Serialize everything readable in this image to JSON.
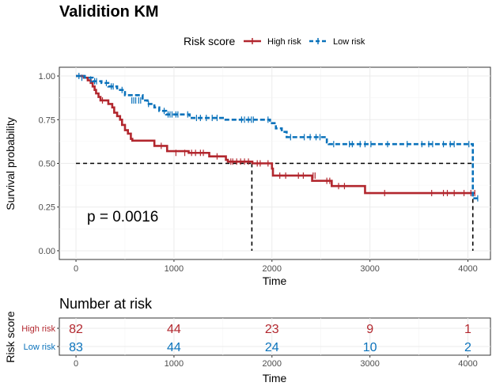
{
  "chart_data": [
    {
      "type": "line",
      "title": "Validition KM",
      "xlabel": "Time",
      "ylabel": "Survival probability",
      "xlim": [
        -170,
        4230
      ],
      "ylim": [
        -0.05,
        1.05
      ],
      "x_ticks": [
        0,
        1000,
        2000,
        3000,
        4000
      ],
      "x_tick_labels": [
        "0",
        "1000",
        "2000",
        "3000",
        "4000"
      ],
      "y_ticks": [
        0,
        0.25,
        0.5,
        0.75,
        1
      ],
      "y_tick_labels": [
        "0.00",
        "0.25",
        "0.50",
        "0.75",
        "1.00"
      ],
      "grid": true,
      "legend": {
        "title": "Risk score",
        "position": "top"
      },
      "annotation": "p = 0.0016",
      "reference_line": {
        "y": 0.5,
        "median_x": [
          1795,
          4050
        ]
      },
      "series": [
        {
          "name": "High risk",
          "color": "#B2272E",
          "dash": "solid",
          "steps": [
            [
              0,
              1.0
            ],
            [
              80,
              0.99
            ],
            [
              120,
              0.975
            ],
            [
              150,
              0.96
            ],
            [
              170,
              0.94
            ],
            [
              190,
              0.92
            ],
            [
              205,
              0.9
            ],
            [
              230,
              0.88
            ],
            [
              250,
              0.86
            ],
            [
              330,
              0.84
            ],
            [
              370,
              0.82
            ],
            [
              390,
              0.79
            ],
            [
              420,
              0.77
            ],
            [
              450,
              0.75
            ],
            [
              470,
              0.72
            ],
            [
              500,
              0.69
            ],
            [
              530,
              0.67
            ],
            [
              560,
              0.64
            ],
            [
              575,
              0.63
            ],
            [
              800,
              0.6
            ],
            [
              930,
              0.57
            ],
            [
              1150,
              0.56
            ],
            [
              1360,
              0.54
            ],
            [
              1530,
              0.52
            ],
            [
              1550,
              0.51
            ],
            [
              1800,
              0.5
            ],
            [
              2000,
              0.47
            ],
            [
              2010,
              0.43
            ],
            [
              2410,
              0.4
            ],
            [
              2610,
              0.37
            ],
            [
              2950,
              0.33
            ],
            [
              4070,
              0.33
            ]
          ],
          "censors": [
            [
              270,
              0.86
            ],
            [
              870,
              0.6
            ],
            [
              1020,
              0.56
            ],
            [
              1110,
              0.56
            ],
            [
              1180,
              0.56
            ],
            [
              1220,
              0.56
            ],
            [
              1270,
              0.56
            ],
            [
              1300,
              0.56
            ],
            [
              1440,
              0.54
            ],
            [
              1580,
              0.51
            ],
            [
              1600,
              0.51
            ],
            [
              1640,
              0.51
            ],
            [
              1680,
              0.51
            ],
            [
              1720,
              0.51
            ],
            [
              1760,
              0.51
            ],
            [
              1850,
              0.5
            ],
            [
              1880,
              0.5
            ],
            [
              1960,
              0.5
            ],
            [
              2080,
              0.43
            ],
            [
              2140,
              0.43
            ],
            [
              2270,
              0.43
            ],
            [
              2320,
              0.43
            ],
            [
              2420,
              0.43
            ],
            [
              2440,
              0.43
            ],
            [
              2560,
              0.4
            ],
            [
              2590,
              0.4
            ],
            [
              2680,
              0.37
            ],
            [
              2740,
              0.37
            ],
            [
              3150,
              0.33
            ],
            [
              3630,
              0.33
            ],
            [
              3750,
              0.33
            ],
            [
              3790,
              0.33
            ],
            [
              3860,
              0.33
            ],
            [
              3960,
              0.33
            ],
            [
              4030,
              0.33
            ],
            [
              4070,
              0.33
            ]
          ]
        },
        {
          "name": "Low risk",
          "color": "#0A72BB",
          "dash": "dashed",
          "steps": [
            [
              0,
              1.0
            ],
            [
              90,
              0.99
            ],
            [
              170,
              0.97
            ],
            [
              260,
              0.96
            ],
            [
              330,
              0.94
            ],
            [
              420,
              0.92
            ],
            [
              500,
              0.89
            ],
            [
              680,
              0.86
            ],
            [
              730,
              0.84
            ],
            [
              800,
              0.82
            ],
            [
              850,
              0.8
            ],
            [
              920,
              0.78
            ],
            [
              1160,
              0.76
            ],
            [
              1510,
              0.75
            ],
            [
              1980,
              0.73
            ],
            [
              2040,
              0.7
            ],
            [
              2100,
              0.68
            ],
            [
              2150,
              0.65
            ],
            [
              2560,
              0.62
            ],
            [
              2580,
              0.61
            ],
            [
              4030,
              0.61
            ],
            [
              4050,
              0.3
            ],
            [
              4100,
              0.3
            ]
          ],
          "censors": [
            [
              30,
              1.0
            ],
            [
              60,
              0.99
            ],
            [
              150,
              0.98
            ],
            [
              190,
              0.97
            ],
            [
              210,
              0.97
            ],
            [
              310,
              0.96
            ],
            [
              360,
              0.94
            ],
            [
              380,
              0.94
            ],
            [
              470,
              0.92
            ],
            [
              570,
              0.86
            ],
            [
              590,
              0.86
            ],
            [
              610,
              0.86
            ],
            [
              640,
              0.86
            ],
            [
              660,
              0.86
            ],
            [
              740,
              0.84
            ],
            [
              900,
              0.8
            ],
            [
              940,
              0.78
            ],
            [
              960,
              0.78
            ],
            [
              980,
              0.78
            ],
            [
              1020,
              0.78
            ],
            [
              1040,
              0.78
            ],
            [
              1140,
              0.78
            ],
            [
              1230,
              0.76
            ],
            [
              1270,
              0.76
            ],
            [
              1330,
              0.76
            ],
            [
              1390,
              0.76
            ],
            [
              1440,
              0.76
            ],
            [
              1690,
              0.75
            ],
            [
              1720,
              0.75
            ],
            [
              1760,
              0.75
            ],
            [
              1790,
              0.75
            ],
            [
              1810,
              0.75
            ],
            [
              1960,
              0.75
            ],
            [
              2190,
              0.65
            ],
            [
              2330,
              0.65
            ],
            [
              2390,
              0.65
            ],
            [
              2450,
              0.65
            ],
            [
              2490,
              0.65
            ],
            [
              2630,
              0.61
            ],
            [
              2790,
              0.61
            ],
            [
              2820,
              0.61
            ],
            [
              2900,
              0.61
            ],
            [
              2950,
              0.61
            ],
            [
              3010,
              0.61
            ],
            [
              3180,
              0.61
            ],
            [
              3380,
              0.61
            ],
            [
              3530,
              0.61
            ],
            [
              3600,
              0.61
            ],
            [
              3640,
              0.61
            ],
            [
              3750,
              0.61
            ],
            [
              3820,
              0.61
            ],
            [
              3860,
              0.61
            ],
            [
              4010,
              0.61
            ],
            [
              4100,
              0.3
            ]
          ]
        }
      ]
    },
    {
      "type": "table",
      "title": "Number at risk",
      "xlabel": "Time",
      "ylabel": "Risk score",
      "x_ticks": [
        0,
        1000,
        2000,
        3000,
        4000
      ],
      "x_tick_labels": [
        "0",
        "1000",
        "2000",
        "3000",
        "4000"
      ],
      "rows": [
        {
          "label": "High risk",
          "color": "#B2272E",
          "values": [
            "82",
            "44",
            "23",
            "9",
            "1"
          ]
        },
        {
          "label": "Low risk",
          "color": "#0A72BB",
          "values": [
            "83",
            "44",
            "24",
            "10",
            "2"
          ]
        }
      ]
    }
  ]
}
